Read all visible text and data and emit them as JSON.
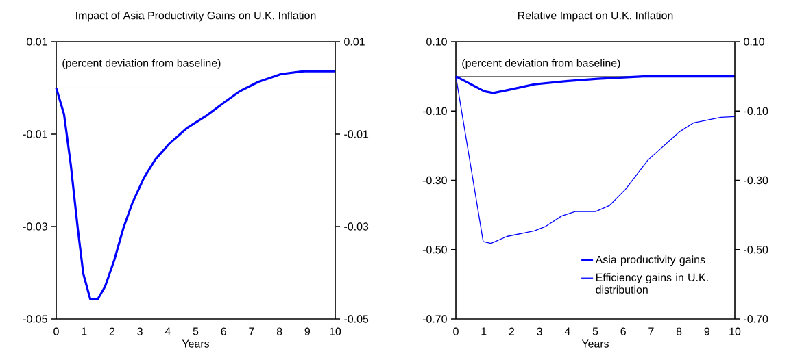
{
  "chart_data": [
    {
      "type": "line",
      "title": "Impact of Asia Productivity Gains on U.K. Inflation",
      "xlabel": "Years",
      "annotations": [
        "(percent deviation from baseline)"
      ],
      "series": [
        {
          "color": "#0000ff",
          "x": [
            0,
            0.28,
            0.52,
            0.77,
            0.97,
            1.22,
            1.49,
            1.75,
            2.08,
            2.41,
            2.73,
            3.14,
            3.55,
            4.05,
            4.7,
            5.36,
            6.01,
            6.58,
            7.24,
            8.06,
            8.88,
            10
          ],
          "values": [
            0,
            -0.0057,
            -0.0165,
            -0.0303,
            -0.0402,
            -0.0457,
            -0.0457,
            -0.043,
            -0.0373,
            -0.0303,
            -0.0249,
            -0.0195,
            -0.0155,
            -0.0121,
            -0.0086,
            -0.0061,
            -0.0032,
            -0.0007,
            0.0013,
            0.003,
            0.0036,
            0.0036
          ]
        }
      ],
      "xlim": [
        0,
        10
      ],
      "xticks": [
        0,
        1,
        2,
        3,
        4,
        5,
        6,
        7,
        8,
        9,
        10
      ],
      "ylim": [
        -0.05,
        0.01
      ],
      "yticks": [
        -0.05,
        -0.03,
        -0.01,
        0.01
      ],
      "y2lim": [
        -0.05,
        0.01
      ],
      "y2ticks": [
        -0.05,
        -0.03,
        -0.01,
        0.01
      ],
      "ref_lines": [
        {
          "axis": "y",
          "value": 0,
          "color": "#000000"
        }
      ],
      "grid": false,
      "marker": "none",
      "line_style": "solid"
    },
    {
      "type": "line",
      "title": "Relative Impact on U.K. Inflation",
      "xlabel": "Years",
      "annotations": [
        "(percent deviation from baseline)"
      ],
      "series": [
        {
          "name": "Asia productivity gains",
          "color": "#0000ff",
          "x": [
            0,
            1.02,
            1.34,
            1.83,
            2.81,
            3.95,
            5.09,
            6.72,
            10
          ],
          "values": [
            0,
            -0.043,
            -0.048,
            -0.04,
            -0.023,
            -0.014,
            -0.007,
            0,
            0
          ]
        },
        {
          "name": "Efficiency gains in U.K. distribution",
          "color": "#0000ff",
          "x": [
            0,
            0.98,
            1.26,
            1.83,
            2.81,
            3.22,
            3.79,
            4.28,
            5.01,
            5.5,
            6.07,
            6.89,
            8.03,
            8.52,
            9.5,
            10
          ],
          "values": [
            0,
            -0.477,
            -0.482,
            -0.462,
            -0.446,
            -0.433,
            -0.403,
            -0.39,
            -0.39,
            -0.373,
            -0.327,
            -0.241,
            -0.159,
            -0.134,
            -0.118,
            -0.116
          ]
        }
      ],
      "xlim": [
        0,
        10
      ],
      "xticks": [
        0,
        1,
        2,
        3,
        4,
        5,
        6,
        7,
        8,
        9,
        10
      ],
      "ylim": [
        -0.7,
        0.1
      ],
      "yticks": [
        {
          "value": -0.7,
          "label": "-0.70"
        },
        {
          "value": -0.5,
          "label": "-0.50"
        },
        {
          "value": -0.3,
          "label": "-0.30"
        },
        {
          "value": -0.1,
          "label": "-0.10"
        },
        {
          "value": 0.1,
          "label": "0.10"
        }
      ],
      "y2lim": [
        -0.7,
        0.1
      ],
      "y2ticks": [
        {
          "value": -0.7,
          "label": "-0.70"
        },
        {
          "value": -0.5,
          "label": "-0.50"
        },
        {
          "value": -0.3,
          "label": "-0.30"
        },
        {
          "value": -0.1,
          "label": "-0.10"
        },
        {
          "value": 0.1,
          "label": "0.10"
        }
      ],
      "ref_lines": [
        {
          "axis": "y",
          "value": 0,
          "color": "#000000"
        }
      ],
      "legend": "bottom right",
      "grid": false,
      "marker": "none",
      "line_style": "solid"
    }
  ]
}
